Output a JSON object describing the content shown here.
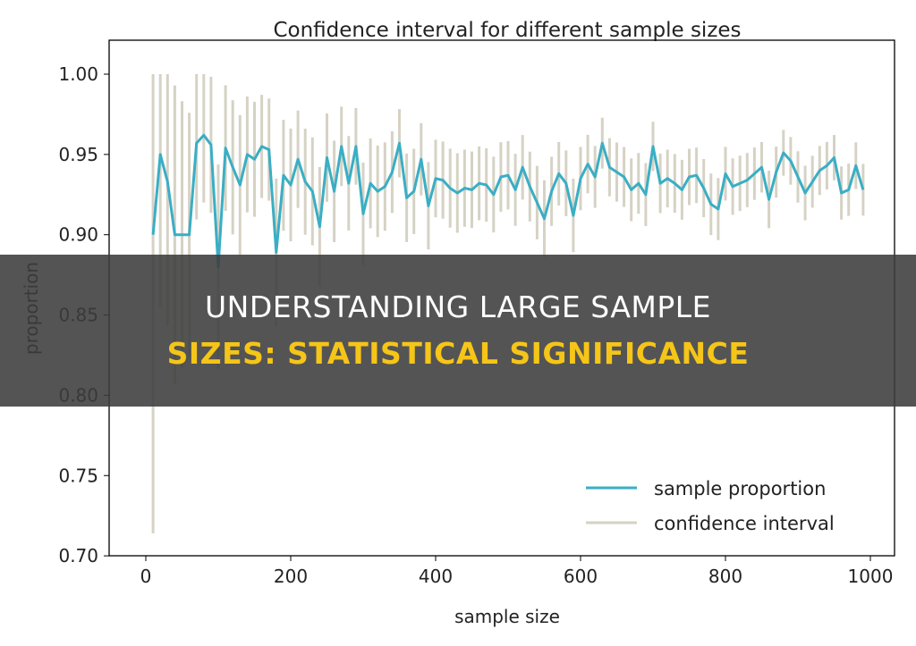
{
  "chart_data": {
    "type": "line",
    "title": "Confidence interval for different sample sizes",
    "xlabel": "sample size",
    "ylabel": "proportion",
    "xlim": [
      -40,
      1040
    ],
    "ylim": [
      0.7,
      1.013
    ],
    "xticks": [
      "0",
      "200",
      "400",
      "600",
      "800",
      "1000"
    ],
    "yticks": [
      "0.70",
      "0.75",
      "0.80",
      "0.85",
      "0.90",
      "0.95",
      "1.00"
    ],
    "grid": false,
    "legend_position": "bottom-right",
    "colors": {
      "proportion": "#3aaec4",
      "interval": "#d6d2c4"
    },
    "legend": [
      "sample proportion",
      "confidence interval"
    ],
    "x": [
      10,
      20,
      30,
      40,
      50,
      60,
      70,
      80,
      90,
      100,
      110,
      120,
      130,
      140,
      150,
      160,
      170,
      180,
      190,
      200,
      210,
      220,
      230,
      240,
      250,
      260,
      270,
      280,
      290,
      300,
      310,
      320,
      330,
      340,
      350,
      360,
      370,
      380,
      390,
      400,
      410,
      420,
      430,
      440,
      450,
      460,
      470,
      480,
      490,
      500,
      510,
      520,
      530,
      540,
      550,
      560,
      570,
      580,
      590,
      600,
      610,
      620,
      630,
      640,
      650,
      660,
      670,
      680,
      690,
      700,
      710,
      720,
      730,
      740,
      750,
      760,
      770,
      780,
      790,
      800,
      810,
      820,
      830,
      840,
      850,
      860,
      870,
      880,
      890,
      900,
      910,
      920,
      930,
      940,
      950,
      960,
      970,
      980,
      990
    ],
    "series": [
      {
        "name": "sample proportion",
        "values": [
          0.9,
          0.95,
          0.933,
          0.9,
          0.9,
          0.9,
          0.957,
          0.962,
          0.956,
          0.88,
          0.954,
          0.942,
          0.931,
          0.95,
          0.947,
          0.955,
          0.953,
          0.889,
          0.937,
          0.931,
          0.947,
          0.933,
          0.927,
          0.905,
          0.948,
          0.927,
          0.955,
          0.932,
          0.955,
          0.913,
          0.932,
          0.927,
          0.93,
          0.939,
          0.957,
          0.923,
          0.927,
          0.947,
          0.918,
          0.935,
          0.934,
          0.929,
          0.926,
          0.929,
          0.928,
          0.932,
          0.931,
          0.925,
          0.936,
          0.937,
          0.928,
          0.942,
          0.93,
          0.92,
          0.91,
          0.927,
          0.938,
          0.932,
          0.912,
          0.935,
          0.944,
          0.936,
          0.957,
          0.942,
          0.939,
          0.936,
          0.928,
          0.932,
          0.925,
          0.955,
          0.932,
          0.935,
          0.932,
          0.928,
          0.936,
          0.937,
          0.929,
          0.919,
          0.916,
          0.938,
          0.93,
          0.932,
          0.934,
          0.938,
          0.942,
          0.922,
          0.939,
          0.951,
          0.946,
          0.936,
          0.926,
          0.933,
          0.94,
          0.943,
          0.948,
          0.926,
          0.928,
          0.943,
          0.928
        ]
      }
    ]
  },
  "banner": {
    "line1": "UNDERSTANDING LARGE SAMPLE",
    "line2": "SIZES: STATISTICAL SIGNIFICANCE"
  }
}
